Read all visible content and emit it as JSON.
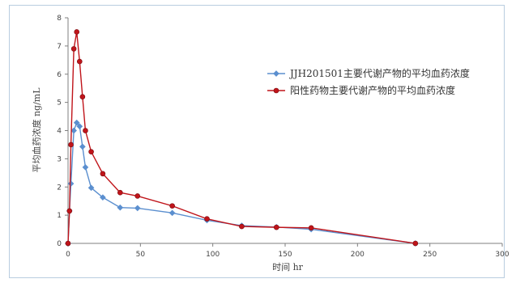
{
  "chart_data": {
    "type": "line",
    "title": "",
    "xlabel": "时间 hr",
    "ylabel": "平均血药浓度 ng/mL",
    "xlim": [
      0,
      300
    ],
    "ylim": [
      0,
      8
    ],
    "x_ticks": [
      0,
      50,
      100,
      150,
      200,
      250,
      300
    ],
    "y_ticks": [
      0,
      1,
      2,
      3,
      4,
      5,
      6,
      7,
      8
    ],
    "grid": false,
    "legend_position": "right",
    "series": [
      {
        "name": "JJH201501主要代谢产物的平均血药浓度",
        "color": "#5b8fcf",
        "marker": "diamond",
        "x": [
          0,
          1,
          2,
          4,
          6,
          8,
          10,
          12,
          16,
          24,
          36,
          48,
          72,
          96,
          120,
          144,
          168,
          240
        ],
        "y": [
          0.0,
          1.15,
          2.12,
          4.0,
          4.28,
          4.15,
          3.43,
          2.7,
          1.97,
          1.63,
          1.27,
          1.25,
          1.08,
          0.82,
          0.63,
          0.58,
          0.5,
          0.0
        ]
      },
      {
        "name": "阳性药物主要代谢产物的平均血药浓度",
        "color": "#c0141a",
        "marker": "circle",
        "x": [
          0,
          1,
          2,
          4,
          6,
          8,
          10,
          12,
          16,
          24,
          36,
          48,
          72,
          96,
          120,
          144,
          168,
          240
        ],
        "y": [
          0.0,
          1.15,
          3.5,
          6.9,
          7.5,
          6.45,
          5.2,
          4.0,
          3.25,
          2.47,
          1.8,
          1.68,
          1.33,
          0.87,
          0.6,
          0.57,
          0.55,
          0.0
        ]
      }
    ]
  }
}
